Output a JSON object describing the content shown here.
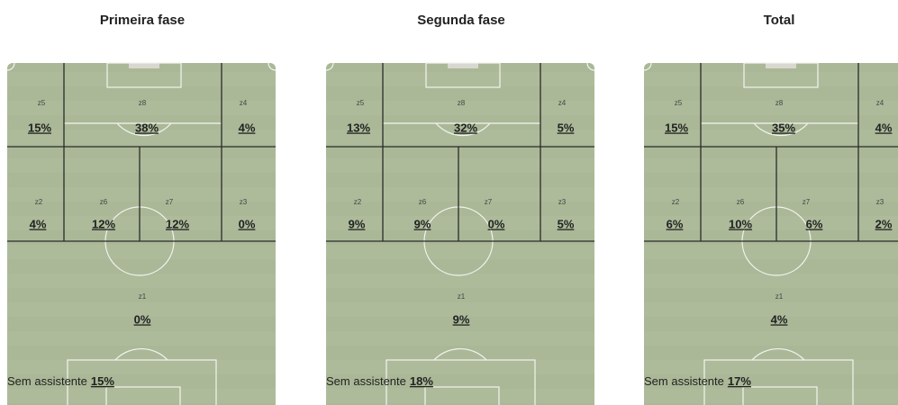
{
  "panels": [
    {
      "title": "Primeira fase",
      "zones": [
        {
          "label": "z5",
          "value": "15%"
        },
        {
          "label": "z8",
          "value": "38%"
        },
        {
          "label": "z4",
          "value": "4%"
        },
        {
          "label": "z2",
          "value": "4%"
        },
        {
          "label": "z6",
          "value": "12%"
        },
        {
          "label": "z7",
          "value": "12%"
        },
        {
          "label": "z3",
          "value": "0%"
        },
        {
          "label": "z1",
          "value": "0%"
        }
      ],
      "no_assist": {
        "label": "Sem assistente",
        "value": "15%"
      }
    },
    {
      "title": "Segunda fase",
      "zones": [
        {
          "label": "z5",
          "value": "13%"
        },
        {
          "label": "z8",
          "value": "32%"
        },
        {
          "label": "z4",
          "value": "5%"
        },
        {
          "label": "z2",
          "value": "9%"
        },
        {
          "label": "z6",
          "value": "9%"
        },
        {
          "label": "z7",
          "value": "0%"
        },
        {
          "label": "z3",
          "value": "5%"
        },
        {
          "label": "z1",
          "value": "9%"
        }
      ],
      "no_assist": {
        "label": "Sem assistente",
        "value": "18%"
      }
    },
    {
      "title": "Total",
      "zones": [
        {
          "label": "z5",
          "value": "15%"
        },
        {
          "label": "z8",
          "value": "35%"
        },
        {
          "label": "z4",
          "value": "4%"
        },
        {
          "label": "z2",
          "value": "6%"
        },
        {
          "label": "z6",
          "value": "10%"
        },
        {
          "label": "z7",
          "value": "6%"
        },
        {
          "label": "z3",
          "value": "2%"
        },
        {
          "label": "z1",
          "value": "4%"
        }
      ],
      "no_assist": {
        "label": "Sem assistente",
        "value": "17%"
      }
    }
  ]
}
